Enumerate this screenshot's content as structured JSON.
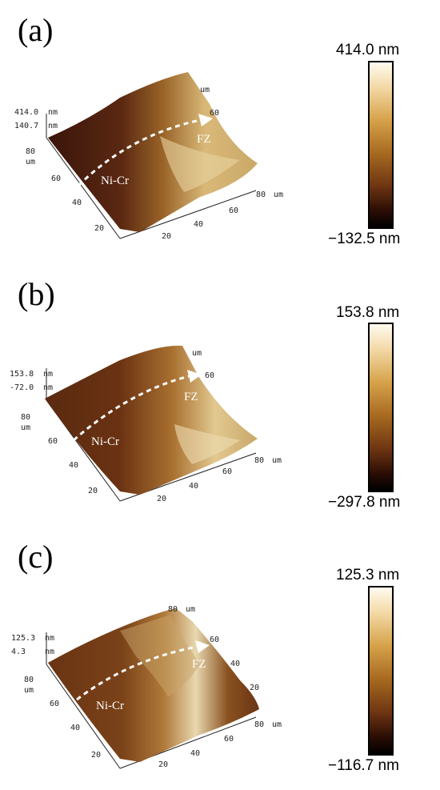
{
  "panels": [
    {
      "label": "(a)",
      "z_max": "414.0",
      "z_max_unit": "nm",
      "z_mid": "140.7",
      "z_mid_unit": "nm",
      "y_ticks": [
        "80",
        "60",
        "40",
        "20"
      ],
      "x_ticks": [
        "20",
        "40",
        "60",
        "80"
      ],
      "back_ticks": [
        "um",
        "40",
        "60"
      ],
      "unit": "um",
      "arrow_label": "FZ",
      "start_label": "Ni-Cr",
      "colorbar_max": "414.0 nm",
      "colorbar_min": "−132.5 nm"
    },
    {
      "label": "(b)",
      "z_max": "153.8",
      "z_max_unit": "nm",
      "z_mid": "-72.0",
      "z_mid_unit": "nm",
      "y_ticks": [
        "80",
        "60",
        "40",
        "20"
      ],
      "x_ticks": [
        "20",
        "40",
        "60",
        "80"
      ],
      "back_ticks": [
        "um",
        "20",
        "60"
      ],
      "unit": "um",
      "arrow_label": "FZ",
      "start_label": "Ni-Cr",
      "colorbar_max": "153.8 nm",
      "colorbar_min": "−297.8 nm"
    },
    {
      "label": "(c)",
      "z_max": "125.3",
      "z_max_unit": "nm",
      "z_mid": "4.3",
      "z_mid_unit": "nm",
      "y_ticks": [
        "80",
        "60",
        "40",
        "20"
      ],
      "x_ticks": [
        "20",
        "40",
        "60",
        "80"
      ],
      "back_ticks": [
        "um",
        "20",
        "40",
        "60",
        "80"
      ],
      "unit": "um",
      "arrow_label": "FZ",
      "start_label": "Ni-Cr",
      "colorbar_max": "125.3 nm",
      "colorbar_min": "−116.7 nm"
    }
  ],
  "colors": {
    "dark": "#3a150a",
    "mid": "#8a5220",
    "light": "#d9b878",
    "highlight": "#f4ead0"
  }
}
